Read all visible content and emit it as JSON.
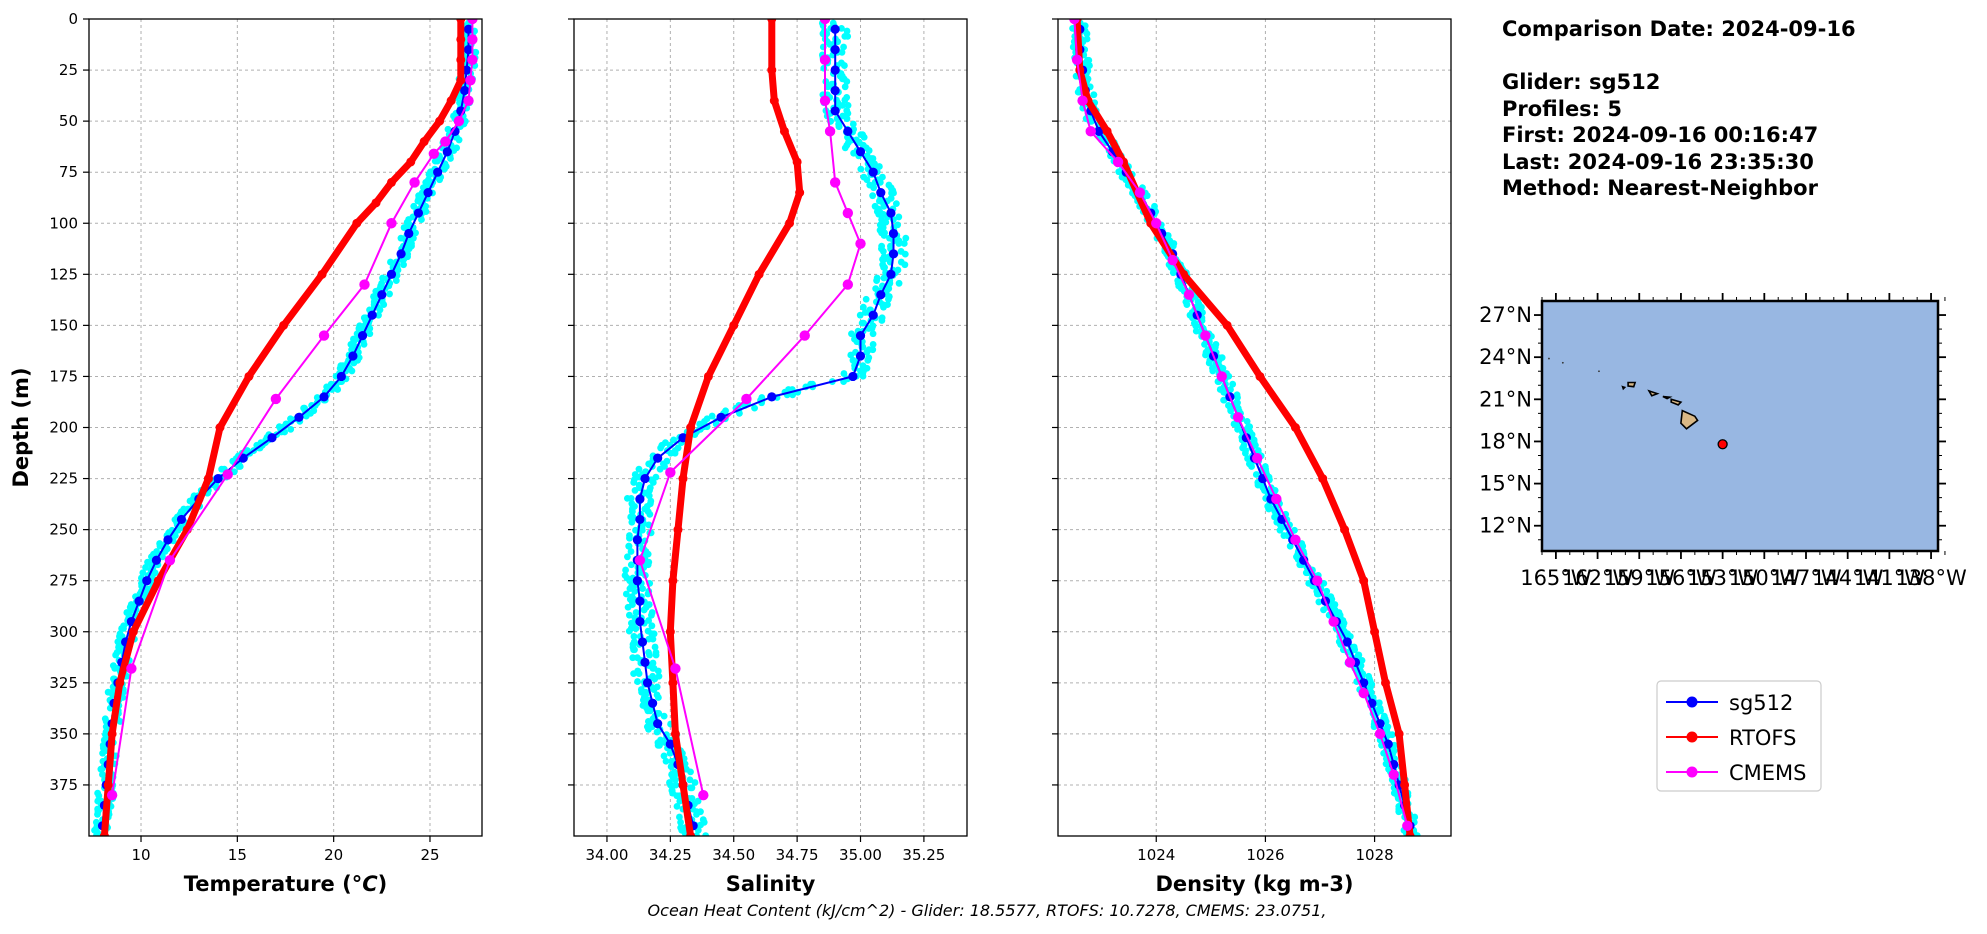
{
  "chart_data": [
    {
      "type": "line",
      "name": "temperature-profile",
      "xlabel": "Temperature (°C)",
      "ylabel": "Depth (m)",
      "xlim": [
        7.3,
        27.7
      ],
      "ylim": [
        0,
        400
      ],
      "y_inverted": true,
      "grid": true,
      "xticks": [
        10,
        15,
        20,
        25
      ],
      "yticks": [
        0,
        25,
        50,
        75,
        100,
        125,
        150,
        175,
        200,
        225,
        250,
        275,
        300,
        325,
        350,
        375
      ],
      "series": [
        {
          "name": "sg512",
          "color": "#0000ff",
          "marker": "circle",
          "points": [
            [
              27.0,
              5
            ],
            [
              27.0,
              15
            ],
            [
              26.9,
              25
            ],
            [
              26.8,
              35
            ],
            [
              26.6,
              45
            ],
            [
              26.3,
              55
            ],
            [
              25.9,
              65
            ],
            [
              25.4,
              75
            ],
            [
              24.9,
              85
            ],
            [
              24.4,
              95
            ],
            [
              23.9,
              105
            ],
            [
              23.5,
              115
            ],
            [
              23.0,
              125
            ],
            [
              22.5,
              135
            ],
            [
              22.0,
              145
            ],
            [
              21.5,
              155
            ],
            [
              21.0,
              165
            ],
            [
              20.4,
              175
            ],
            [
              19.5,
              185
            ],
            [
              18.2,
              195
            ],
            [
              16.8,
              205
            ],
            [
              15.3,
              215
            ],
            [
              14.0,
              225
            ],
            [
              13.0,
              235
            ],
            [
              12.1,
              245
            ],
            [
              11.4,
              255
            ],
            [
              10.8,
              265
            ],
            [
              10.3,
              275
            ],
            [
              9.9,
              285
            ],
            [
              9.5,
              295
            ],
            [
              9.2,
              305
            ],
            [
              9.0,
              315
            ],
            [
              8.8,
              325
            ],
            [
              8.6,
              335
            ],
            [
              8.5,
              345
            ],
            [
              8.4,
              355
            ],
            [
              8.3,
              365
            ],
            [
              8.2,
              375
            ],
            [
              8.1,
              385
            ],
            [
              8.0,
              395
            ]
          ]
        },
        {
          "name": "RTOFS",
          "color": "#ff0000",
          "marker": "circle",
          "points": [
            [
              26.6,
              0
            ],
            [
              26.6,
              10
            ],
            [
              26.6,
              20
            ],
            [
              26.6,
              30
            ],
            [
              26.1,
              40
            ],
            [
              25.5,
              50
            ],
            [
              24.7,
              60
            ],
            [
              24.0,
              70
            ],
            [
              23.0,
              80
            ],
            [
              22.2,
              90
            ],
            [
              21.2,
              100
            ],
            [
              19.4,
              125
            ],
            [
              17.4,
              150
            ],
            [
              15.6,
              175
            ],
            [
              14.1,
              200
            ],
            [
              13.5,
              225
            ],
            [
              12.4,
              250
            ],
            [
              10.9,
              275
            ],
            [
              9.6,
              300
            ],
            [
              8.9,
              325
            ],
            [
              8.5,
              350
            ],
            [
              8.3,
              375
            ],
            [
              8.1,
              400
            ]
          ]
        },
        {
          "name": "CMEMS",
          "color": "#ff00ff",
          "marker": "circle",
          "points": [
            [
              27.2,
              0
            ],
            [
              27.2,
              10
            ],
            [
              27.2,
              20
            ],
            [
              27.1,
              30
            ],
            [
              27.0,
              40
            ],
            [
              26.5,
              50
            ],
            [
              25.8,
              60
            ],
            [
              25.2,
              66
            ],
            [
              24.2,
              80
            ],
            [
              23.0,
              100
            ],
            [
              21.6,
              130
            ],
            [
              19.5,
              155
            ],
            [
              17.0,
              186
            ],
            [
              14.5,
              223
            ],
            [
              11.5,
              265
            ],
            [
              9.5,
              318
            ],
            [
              8.5,
              380
            ]
          ]
        }
      ]
    },
    {
      "type": "line",
      "name": "salinity-profile",
      "xlabel": "Salinity",
      "ylabel": "",
      "xlim": [
        33.87,
        35.42
      ],
      "ylim": [
        0,
        400
      ],
      "y_inverted": true,
      "grid": true,
      "xticks": [
        34.0,
        34.25,
        34.5,
        34.75,
        35.0,
        35.25
      ],
      "series": [
        {
          "name": "sg512",
          "color": "#0000ff",
          "marker": "circle",
          "points": [
            [
              34.9,
              5
            ],
            [
              34.9,
              15
            ],
            [
              34.9,
              25
            ],
            [
              34.9,
              35
            ],
            [
              34.9,
              45
            ],
            [
              34.95,
              55
            ],
            [
              35.0,
              65
            ],
            [
              35.05,
              75
            ],
            [
              35.08,
              85
            ],
            [
              35.12,
              95
            ],
            [
              35.13,
              105
            ],
            [
              35.13,
              115
            ],
            [
              35.12,
              125
            ],
            [
              35.08,
              135
            ],
            [
              35.05,
              145
            ],
            [
              35.0,
              155
            ],
            [
              35.0,
              165
            ],
            [
              34.97,
              175
            ],
            [
              34.65,
              185
            ],
            [
              34.45,
              195
            ],
            [
              34.3,
              205
            ],
            [
              34.2,
              215
            ],
            [
              34.15,
              225
            ],
            [
              34.13,
              235
            ],
            [
              34.13,
              245
            ],
            [
              34.12,
              255
            ],
            [
              34.12,
              265
            ],
            [
              34.12,
              275
            ],
            [
              34.13,
              285
            ],
            [
              34.13,
              295
            ],
            [
              34.14,
              305
            ],
            [
              34.15,
              315
            ],
            [
              34.16,
              325
            ],
            [
              34.18,
              335
            ],
            [
              34.2,
              345
            ],
            [
              34.25,
              355
            ],
            [
              34.28,
              365
            ],
            [
              34.3,
              375
            ],
            [
              34.32,
              385
            ],
            [
              34.34,
              395
            ]
          ]
        },
        {
          "name": "RTOFS",
          "color": "#ff0000",
          "marker": "circle",
          "points": [
            [
              34.65,
              0
            ],
            [
              34.65,
              25
            ],
            [
              34.66,
              40
            ],
            [
              34.7,
              55
            ],
            [
              34.75,
              70
            ],
            [
              34.76,
              85
            ],
            [
              34.72,
              100
            ],
            [
              34.6,
              125
            ],
            [
              34.5,
              150
            ],
            [
              34.4,
              175
            ],
            [
              34.33,
              200
            ],
            [
              34.3,
              225
            ],
            [
              34.28,
              250
            ],
            [
              34.26,
              275
            ],
            [
              34.25,
              300
            ],
            [
              34.26,
              325
            ],
            [
              34.27,
              350
            ],
            [
              34.3,
              375
            ],
            [
              34.33,
              400
            ]
          ]
        },
        {
          "name": "CMEMS",
          "color": "#ff00ff",
          "marker": "circle",
          "points": [
            [
              34.86,
              0
            ],
            [
              34.86,
              20
            ],
            [
              34.86,
              40
            ],
            [
              34.88,
              55
            ],
            [
              34.9,
              80
            ],
            [
              34.95,
              95
            ],
            [
              35.0,
              110
            ],
            [
              34.95,
              130
            ],
            [
              34.78,
              155
            ],
            [
              34.55,
              186
            ],
            [
              34.25,
              222
            ],
            [
              34.13,
              265
            ],
            [
              34.27,
              318
            ],
            [
              34.38,
              380
            ]
          ]
        }
      ]
    },
    {
      "type": "line",
      "name": "density-profile",
      "xlabel": "Density (kg m-3)",
      "ylabel": "",
      "xlim": [
        1022.2,
        1029.4
      ],
      "ylim": [
        0,
        400
      ],
      "y_inverted": true,
      "grid": true,
      "xticks": [
        1024,
        1026,
        1028
      ],
      "series": [
        {
          "name": "sg512",
          "color": "#0000ff",
          "marker": "circle",
          "points": [
            [
              1022.6,
              5
            ],
            [
              1022.6,
              15
            ],
            [
              1022.65,
              25
            ],
            [
              1022.7,
              35
            ],
            [
              1022.8,
              45
            ],
            [
              1022.95,
              55
            ],
            [
              1023.2,
              65
            ],
            [
              1023.45,
              75
            ],
            [
              1023.7,
              85
            ],
            [
              1023.9,
              95
            ],
            [
              1024.1,
              105
            ],
            [
              1024.3,
              115
            ],
            [
              1024.45,
              125
            ],
            [
              1024.6,
              135
            ],
            [
              1024.75,
              145
            ],
            [
              1024.9,
              155
            ],
            [
              1025.05,
              165
            ],
            [
              1025.2,
              175
            ],
            [
              1025.35,
              185
            ],
            [
              1025.5,
              195
            ],
            [
              1025.65,
              205
            ],
            [
              1025.8,
              215
            ],
            [
              1025.95,
              225
            ],
            [
              1026.1,
              235
            ],
            [
              1026.3,
              245
            ],
            [
              1026.5,
              255
            ],
            [
              1026.7,
              265
            ],
            [
              1026.9,
              275
            ],
            [
              1027.1,
              285
            ],
            [
              1027.3,
              295
            ],
            [
              1027.5,
              305
            ],
            [
              1027.65,
              315
            ],
            [
              1027.8,
              325
            ],
            [
              1027.95,
              335
            ],
            [
              1028.1,
              345
            ],
            [
              1028.25,
              355
            ],
            [
              1028.35,
              365
            ],
            [
              1028.45,
              375
            ],
            [
              1028.55,
              385
            ],
            [
              1028.65,
              395
            ]
          ]
        },
        {
          "name": "RTOFS",
          "color": "#ff0000",
          "marker": "circle",
          "points": [
            [
              1022.55,
              0
            ],
            [
              1022.6,
              25
            ],
            [
              1022.75,
              40
            ],
            [
              1023.1,
              55
            ],
            [
              1023.4,
              70
            ],
            [
              1023.9,
              100
            ],
            [
              1024.5,
              125
            ],
            [
              1025.3,
              150
            ],
            [
              1025.9,
              175
            ],
            [
              1026.55,
              200
            ],
            [
              1027.05,
              225
            ],
            [
              1027.45,
              250
            ],
            [
              1027.8,
              275
            ],
            [
              1028.0,
              300
            ],
            [
              1028.2,
              325
            ],
            [
              1028.45,
              350
            ],
            [
              1028.55,
              375
            ],
            [
              1028.65,
              400
            ]
          ]
        },
        {
          "name": "CMEMS",
          "color": "#ff00ff",
          "marker": "circle",
          "points": [
            [
              1022.5,
              0
            ],
            [
              1022.55,
              20
            ],
            [
              1022.65,
              40
            ],
            [
              1022.8,
              55
            ],
            [
              1023.3,
              70
            ],
            [
              1023.7,
              85
            ],
            [
              1024.0,
              100
            ],
            [
              1024.3,
              118
            ],
            [
              1024.6,
              135
            ],
            [
              1024.9,
              155
            ],
            [
              1025.2,
              175
            ],
            [
              1025.5,
              195
            ],
            [
              1025.85,
              215
            ],
            [
              1026.2,
              235
            ],
            [
              1026.55,
              255
            ],
            [
              1026.95,
              275
            ],
            [
              1027.25,
              295
            ],
            [
              1027.55,
              315
            ],
            [
              1027.8,
              330
            ],
            [
              1028.1,
              350
            ],
            [
              1028.35,
              370
            ],
            [
              1028.6,
              395
            ]
          ]
        }
      ]
    }
  ],
  "info": {
    "comparison_date": "Comparison Date: 2024-09-16",
    "glider": "Glider: sg512",
    "profiles": "Profiles: 5",
    "first": "First: 2024-09-16 00:16:47",
    "last": "Last: 2024-09-16 23:35:30",
    "method": "Method: Nearest-Neighbor"
  },
  "map": {
    "lat_labels": [
      "27°N",
      "24°N",
      "21°N",
      "18°N",
      "15°N",
      "12°N"
    ],
    "lon_labels": [
      "165°W",
      "162°W",
      "159°W",
      "156°W",
      "153°W",
      "150°W",
      "147°W",
      "144°W",
      "141°W",
      "138°W"
    ],
    "lon_range": [
      -166,
      -137.5
    ],
    "lat_range": [
      10.2,
      28
    ],
    "ocean_color": "#98b7e2",
    "land_color": "#d9b886",
    "glider_position": {
      "lon": -153.0,
      "lat": 17.8,
      "color": "#ff0000"
    }
  },
  "legend": {
    "items": [
      {
        "label": "sg512",
        "color": "#0000ff"
      },
      {
        "label": "RTOFS",
        "color": "#ff0000"
      },
      {
        "label": "CMEMS",
        "color": "#ff00ff"
      }
    ]
  },
  "footer": {
    "ohc": "Ocean Heat Content (kJ/cm^2) - Glider: 18.5577,  RTOFS: 10.7278,  CMEMS: 23.0751,"
  },
  "colors": {
    "scatter_cyan": "#00ffff",
    "grid": "#b0b0b0"
  }
}
